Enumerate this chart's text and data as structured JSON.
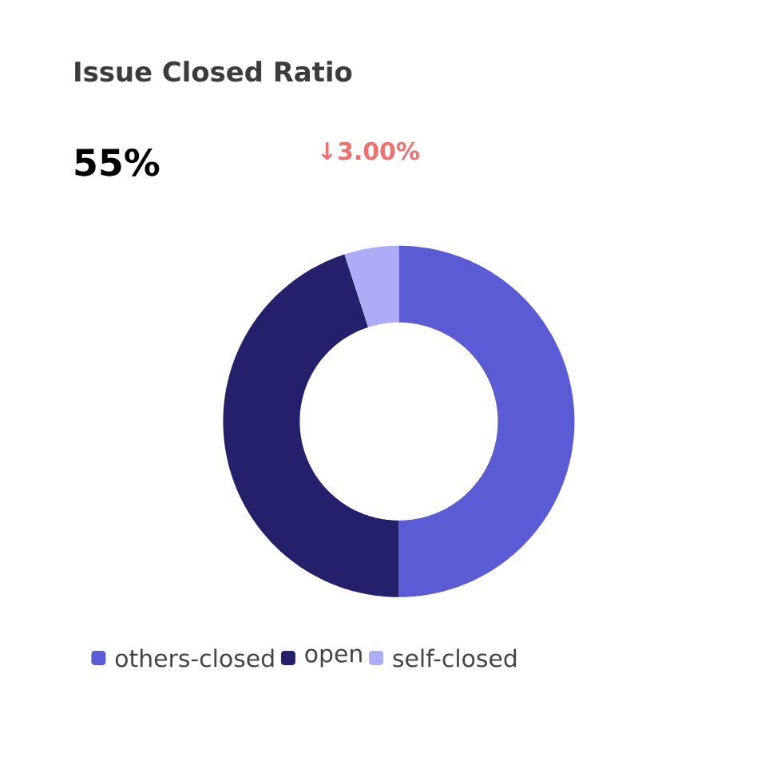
{
  "chart_data": {
    "type": "donut",
    "title": "Issue Closed Ratio",
    "categories": [
      "others-closed",
      "open",
      "self-closed"
    ],
    "values": [
      50,
      45,
      5
    ],
    "colors": [
      "#5b5bd6",
      "#25206b",
      "#acacf7"
    ],
    "annotations": [
      "55%",
      "↓3.00%"
    ],
    "legend": "bottom"
  }
}
